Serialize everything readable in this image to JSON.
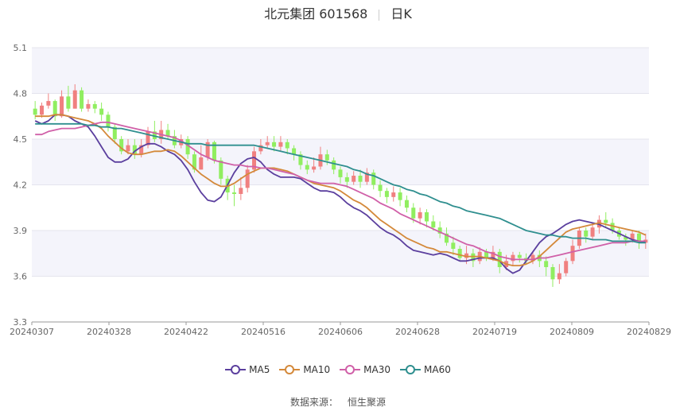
{
  "header": {
    "stock": "北元集团 601568",
    "period": "日K"
  },
  "source": {
    "label": "数据来源：",
    "name": "恒生聚源"
  },
  "colors": {
    "up": "#f08080",
    "down": "#90ee60",
    "ma5": "#5b3f9e",
    "ma10": "#d4893a",
    "ma30": "#d060a8",
    "ma60": "#2f8f8f"
  },
  "chart_data": {
    "type": "line",
    "ylim": [
      3.3,
      5.1
    ],
    "yticks": [
      "3.3",
      "3.6",
      "3.9",
      "4.2",
      "4.5",
      "4.8",
      "5.1"
    ],
    "xticks": [
      "20240307",
      "20240328",
      "20240422",
      "20240516",
      "20240606",
      "20240628",
      "20240719",
      "20240809",
      "20240829"
    ],
    "legend": [
      "MA5",
      "MA10",
      "MA30",
      "MA60"
    ],
    "legend_position": "bottom",
    "grid": true,
    "series": [
      {
        "name": "MA5",
        "color": "#5b3f9e",
        "values": [
          4.62,
          4.6,
          4.62,
          4.66,
          4.66,
          4.65,
          4.62,
          4.6,
          4.58,
          4.52,
          4.45,
          4.38,
          4.35,
          4.35,
          4.37,
          4.42,
          4.45,
          4.47,
          4.47,
          4.45,
          4.42,
          4.4,
          4.36,
          4.3,
          4.22,
          4.15,
          4.1,
          4.09,
          4.12,
          4.2,
          4.28,
          4.34,
          4.37,
          4.38,
          4.35,
          4.3,
          4.27,
          4.25,
          4.25,
          4.25,
          4.24,
          4.21,
          4.18,
          4.16,
          4.16,
          4.15,
          4.12,
          4.08,
          4.05,
          4.03,
          4.0,
          3.96,
          3.92,
          3.89,
          3.87,
          3.84,
          3.8,
          3.77,
          3.76,
          3.75,
          3.74,
          3.75,
          3.74,
          3.72,
          3.7,
          3.7,
          3.71,
          3.72,
          3.72,
          3.72,
          3.7,
          3.65,
          3.62,
          3.64,
          3.7,
          3.76,
          3.82,
          3.86,
          3.88,
          3.91,
          3.94,
          3.96,
          3.97,
          3.96,
          3.95,
          3.94,
          3.92,
          3.9,
          3.88,
          3.86,
          3.84,
          3.83,
          3.82
        ]
      },
      {
        "name": "MA10",
        "color": "#d4893a",
        "values": [
          4.65,
          4.65,
          4.65,
          4.66,
          4.66,
          4.65,
          4.64,
          4.63,
          4.62,
          4.6,
          4.57,
          4.52,
          4.48,
          4.44,
          4.41,
          4.4,
          4.4,
          4.41,
          4.42,
          4.42,
          4.43,
          4.42,
          4.39,
          4.35,
          4.31,
          4.27,
          4.24,
          4.21,
          4.19,
          4.19,
          4.21,
          4.24,
          4.27,
          4.29,
          4.31,
          4.31,
          4.31,
          4.3,
          4.29,
          4.27,
          4.25,
          4.23,
          4.21,
          4.2,
          4.19,
          4.18,
          4.16,
          4.13,
          4.1,
          4.08,
          4.05,
          4.01,
          3.97,
          3.94,
          3.91,
          3.88,
          3.85,
          3.83,
          3.81,
          3.79,
          3.78,
          3.76,
          3.76,
          3.75,
          3.74,
          3.73,
          3.73,
          3.73,
          3.72,
          3.71,
          3.7,
          3.68,
          3.67,
          3.67,
          3.68,
          3.7,
          3.73,
          3.77,
          3.81,
          3.85,
          3.89,
          3.91,
          3.92,
          3.93,
          3.94,
          3.95,
          3.94,
          3.93,
          3.92,
          3.91,
          3.9,
          3.89,
          3.87
        ]
      },
      {
        "name": "MA30",
        "color": "#d060a8",
        "values": [
          4.53,
          4.53,
          4.55,
          4.56,
          4.57,
          4.57,
          4.57,
          4.58,
          4.59,
          4.6,
          4.61,
          4.61,
          4.6,
          4.59,
          4.58,
          4.57,
          4.56,
          4.55,
          4.54,
          4.53,
          4.52,
          4.51,
          4.49,
          4.46,
          4.43,
          4.4,
          4.38,
          4.36,
          4.35,
          4.34,
          4.33,
          4.33,
          4.32,
          4.32,
          4.31,
          4.31,
          4.3,
          4.29,
          4.28,
          4.27,
          4.25,
          4.23,
          4.22,
          4.21,
          4.21,
          4.21,
          4.2,
          4.19,
          4.17,
          4.15,
          4.13,
          4.11,
          4.08,
          4.06,
          4.04,
          4.01,
          3.99,
          3.97,
          3.95,
          3.93,
          3.91,
          3.89,
          3.87,
          3.85,
          3.83,
          3.81,
          3.8,
          3.78,
          3.76,
          3.75,
          3.73,
          3.72,
          3.71,
          3.71,
          3.71,
          3.71,
          3.72,
          3.72,
          3.73,
          3.74,
          3.75,
          3.76,
          3.77,
          3.78,
          3.79,
          3.8,
          3.81,
          3.82,
          3.82,
          3.82,
          3.83,
          3.83,
          3.83
        ]
      },
      {
        "name": "MA60",
        "color": "#2f8f8f",
        "values": [
          4.6,
          4.6,
          4.6,
          4.6,
          4.6,
          4.6,
          4.6,
          4.6,
          4.59,
          4.59,
          4.58,
          4.58,
          4.57,
          4.57,
          4.56,
          4.55,
          4.54,
          4.53,
          4.52,
          4.51,
          4.5,
          4.49,
          4.48,
          4.47,
          4.47,
          4.47,
          4.46,
          4.46,
          4.46,
          4.46,
          4.46,
          4.46,
          4.46,
          4.46,
          4.45,
          4.44,
          4.43,
          4.42,
          4.41,
          4.4,
          4.39,
          4.38,
          4.37,
          4.36,
          4.35,
          4.34,
          4.33,
          4.32,
          4.3,
          4.29,
          4.27,
          4.26,
          4.24,
          4.22,
          4.2,
          4.19,
          4.17,
          4.16,
          4.14,
          4.13,
          4.11,
          4.09,
          4.08,
          4.06,
          4.05,
          4.03,
          4.02,
          4.01,
          4.0,
          3.99,
          3.98,
          3.96,
          3.94,
          3.92,
          3.9,
          3.89,
          3.88,
          3.87,
          3.87,
          3.86,
          3.86,
          3.85,
          3.85,
          3.85,
          3.84,
          3.84,
          3.84,
          3.83,
          3.83,
          3.83,
          3.83,
          3.82,
          3.82
        ]
      }
    ],
    "candles": [
      [
        4.7,
        4.66,
        4.75,
        4.63
      ],
      [
        4.66,
        4.72,
        4.74,
        4.64
      ],
      [
        4.72,
        4.75,
        4.8,
        4.7
      ],
      [
        4.75,
        4.65,
        4.76,
        4.62
      ],
      [
        4.65,
        4.78,
        4.82,
        4.64
      ],
      [
        4.78,
        4.7,
        4.85,
        4.68
      ],
      [
        4.7,
        4.82,
        4.86,
        4.7
      ],
      [
        4.82,
        4.7,
        4.84,
        4.68
      ],
      [
        4.7,
        4.73,
        4.76,
        4.68
      ],
      [
        4.73,
        4.7,
        4.75,
        4.67
      ],
      [
        4.7,
        4.66,
        4.74,
        4.62
      ],
      [
        4.66,
        4.58,
        4.68,
        4.55
      ],
      [
        4.58,
        4.5,
        4.6,
        4.47
      ],
      [
        4.5,
        4.42,
        4.52,
        4.4
      ],
      [
        4.42,
        4.46,
        4.5,
        4.4
      ],
      [
        4.46,
        4.4,
        4.5,
        4.37
      ],
      [
        4.4,
        4.46,
        4.5,
        4.38
      ],
      [
        4.46,
        4.55,
        4.58,
        4.44
      ],
      [
        4.55,
        4.5,
        4.62,
        4.48
      ],
      [
        4.5,
        4.56,
        4.62,
        4.47
      ],
      [
        4.56,
        4.52,
        4.6,
        4.5
      ],
      [
        4.52,
        4.46,
        4.56,
        4.44
      ],
      [
        4.46,
        4.5,
        4.53,
        4.44
      ],
      [
        4.5,
        4.4,
        4.52,
        4.37
      ],
      [
        4.4,
        4.3,
        4.42,
        4.28
      ],
      [
        4.3,
        4.38,
        4.46,
        4.3
      ],
      [
        4.38,
        4.48,
        4.5,
        4.36
      ],
      [
        4.48,
        4.36,
        4.49,
        4.34
      ],
      [
        4.36,
        4.24,
        4.38,
        4.2
      ],
      [
        4.24,
        4.15,
        4.26,
        4.1
      ],
      [
        4.15,
        4.14,
        4.2,
        4.06
      ],
      [
        4.14,
        4.18,
        4.25,
        4.1
      ],
      [
        4.18,
        4.3,
        4.33,
        4.15
      ],
      [
        4.3,
        4.42,
        4.45,
        4.28
      ],
      [
        4.42,
        4.46,
        4.5,
        4.4
      ],
      [
        4.46,
        4.48,
        4.52,
        4.44
      ],
      [
        4.48,
        4.45,
        4.52,
        4.42
      ],
      [
        4.45,
        4.48,
        4.52,
        4.42
      ],
      [
        4.48,
        4.44,
        4.5,
        4.4
      ],
      [
        4.44,
        4.4,
        4.46,
        4.36
      ],
      [
        4.4,
        4.33,
        4.42,
        4.3
      ],
      [
        4.33,
        4.3,
        4.36,
        4.27
      ],
      [
        4.3,
        4.32,
        4.38,
        4.28
      ],
      [
        4.32,
        4.4,
        4.45,
        4.3
      ],
      [
        4.4,
        4.36,
        4.43,
        4.33
      ],
      [
        4.36,
        4.3,
        4.38,
        4.27
      ],
      [
        4.3,
        4.25,
        4.32,
        4.21
      ],
      [
        4.25,
        4.22,
        4.28,
        4.18
      ],
      [
        4.22,
        4.26,
        4.29,
        4.2
      ],
      [
        4.26,
        4.22,
        4.3,
        4.18
      ],
      [
        4.22,
        4.28,
        4.31,
        4.2
      ],
      [
        4.28,
        4.2,
        4.3,
        4.17
      ],
      [
        4.2,
        4.16,
        4.23,
        4.12
      ],
      [
        4.16,
        4.12,
        4.18,
        4.08
      ],
      [
        4.12,
        4.15,
        4.19,
        4.09
      ],
      [
        4.15,
        4.1,
        4.18,
        4.06
      ],
      [
        4.1,
        4.05,
        4.13,
        4.02
      ],
      [
        4.05,
        3.98,
        4.08,
        3.95
      ],
      [
        3.98,
        4.02,
        4.05,
        3.94
      ],
      [
        4.02,
        3.96,
        4.04,
        3.92
      ],
      [
        3.96,
        3.92,
        4.0,
        3.9
      ],
      [
        3.92,
        3.88,
        3.96,
        3.85
      ],
      [
        3.88,
        3.82,
        3.92,
        3.8
      ],
      [
        3.82,
        3.78,
        3.86,
        3.74
      ],
      [
        3.78,
        3.72,
        3.8,
        3.7
      ],
      [
        3.72,
        3.75,
        3.8,
        3.68
      ],
      [
        3.75,
        3.7,
        3.78,
        3.66
      ],
      [
        3.7,
        3.76,
        3.79,
        3.68
      ],
      [
        3.76,
        3.72,
        3.78,
        3.7
      ],
      [
        3.72,
        3.76,
        3.8,
        3.7
      ],
      [
        3.76,
        3.66,
        3.78,
        3.62
      ],
      [
        3.66,
        3.7,
        3.74,
        3.64
      ],
      [
        3.7,
        3.74,
        3.76,
        3.67
      ],
      [
        3.74,
        3.72,
        3.76,
        3.69
      ],
      [
        3.72,
        3.7,
        3.75,
        3.68
      ],
      [
        3.7,
        3.74,
        3.76,
        3.68
      ],
      [
        3.74,
        3.7,
        3.77,
        3.66
      ],
      [
        3.7,
        3.66,
        3.73,
        3.6
      ],
      [
        3.66,
        3.58,
        3.68,
        3.53
      ],
      [
        3.58,
        3.62,
        3.68,
        3.55
      ],
      [
        3.62,
        3.7,
        3.72,
        3.6
      ],
      [
        3.7,
        3.8,
        3.84,
        3.68
      ],
      [
        3.8,
        3.9,
        3.92,
        3.78
      ],
      [
        3.9,
        3.86,
        3.92,
        3.82
      ],
      [
        3.86,
        3.92,
        3.95,
        3.84
      ],
      [
        3.92,
        3.97,
        4.0,
        3.88
      ],
      [
        3.97,
        3.95,
        4.02,
        3.92
      ],
      [
        3.95,
        3.9,
        3.98,
        3.88
      ],
      [
        3.9,
        3.86,
        3.92,
        3.84
      ],
      [
        3.86,
        3.84,
        3.88,
        3.8
      ],
      [
        3.84,
        3.88,
        3.9,
        3.82
      ],
      [
        3.88,
        3.82,
        3.9,
        3.78
      ],
      [
        3.82,
        3.84,
        3.88,
        3.78
      ]
    ]
  }
}
